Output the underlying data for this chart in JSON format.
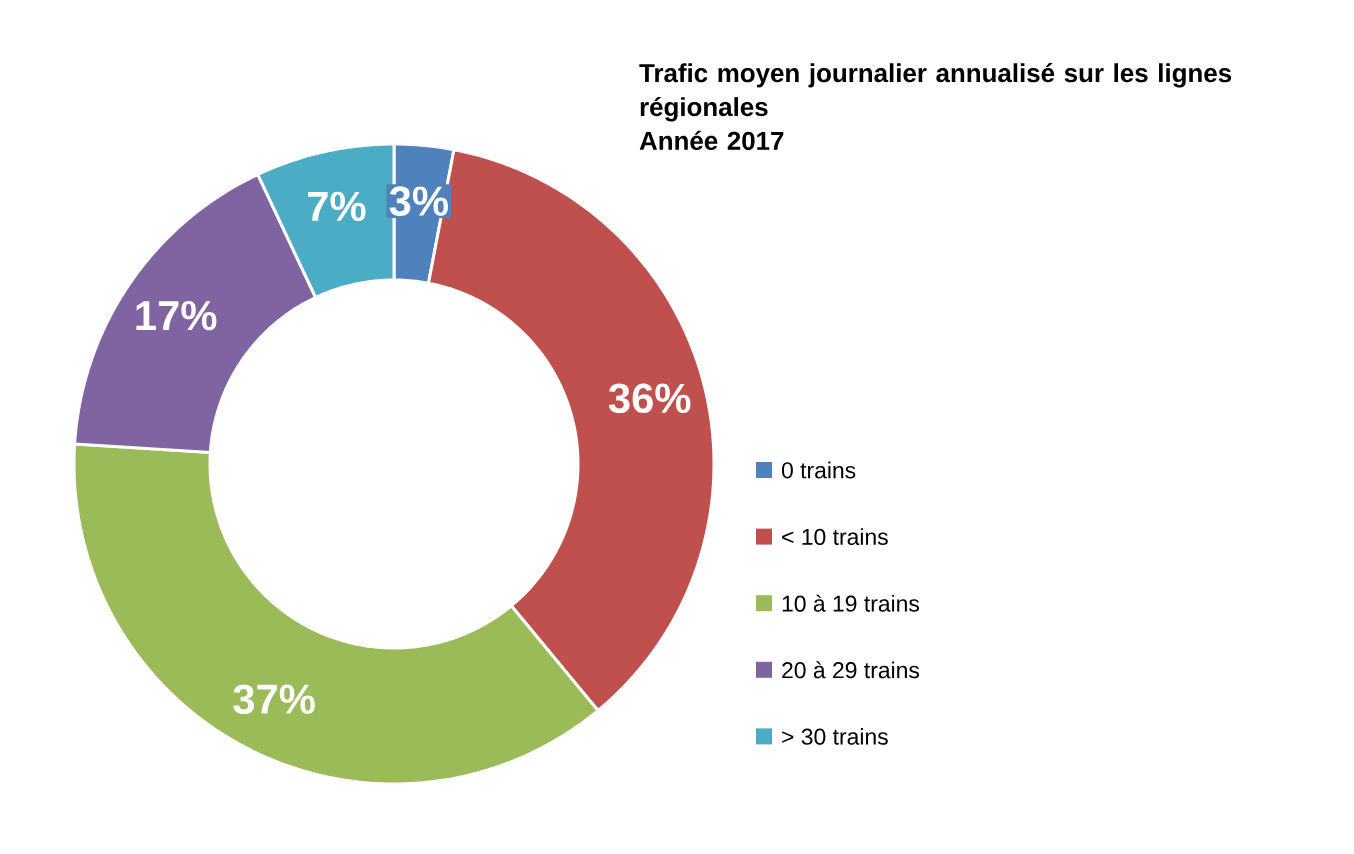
{
  "chart_data": {
    "type": "donut",
    "title": "Trafic moyen journalier annualisé sur les lignes régionales",
    "subtitle": "Année 2017",
    "categories": [
      "0 trains",
      "< 10 trains",
      "10 à 19 trains",
      "20 à 29 trains",
      "> 30 trains"
    ],
    "values": [
      3,
      36,
      37,
      17,
      7
    ],
    "colors": [
      "#4f81bd",
      "#c0504d",
      "#9bbb59",
      "#8064a2",
      "#4bacc6"
    ],
    "value_labels": [
      "3%",
      "36%",
      "37%",
      "17%",
      "7%"
    ],
    "legend": "right"
  }
}
